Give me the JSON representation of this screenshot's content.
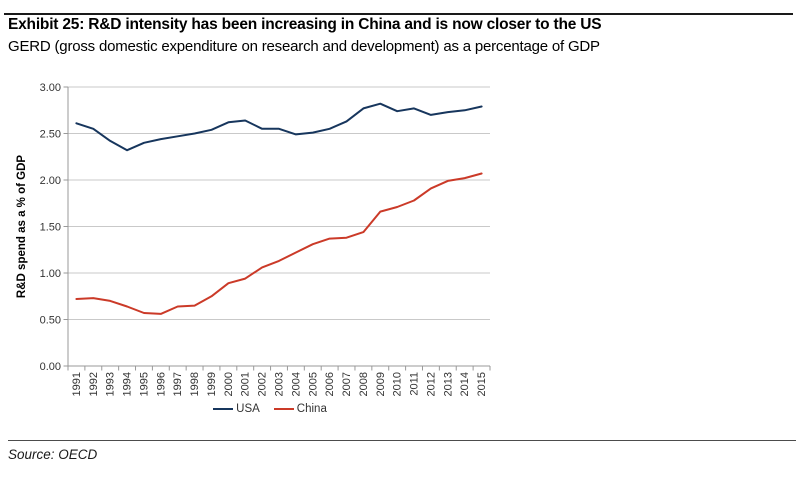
{
  "header": {
    "title": "Exhibit 25: R&D intensity has been increasing in China and is now closer to the US",
    "subtitle": "GERD (gross domestic expenditure on research and development) as a percentage of GDP"
  },
  "chart_data": {
    "type": "line",
    "x": [
      1991,
      1992,
      1993,
      1994,
      1995,
      1996,
      1997,
      1998,
      1999,
      2000,
      2001,
      2002,
      2003,
      2004,
      2005,
      2006,
      2007,
      2008,
      2009,
      2010,
      2011,
      2012,
      2013,
      2014,
      2015
    ],
    "series": [
      {
        "name": "USA",
        "color": "#17365d",
        "values": [
          2.61,
          2.55,
          2.42,
          2.32,
          2.4,
          2.44,
          2.47,
          2.5,
          2.54,
          2.62,
          2.64,
          2.55,
          2.55,
          2.49,
          2.51,
          2.55,
          2.63,
          2.77,
          2.82,
          2.74,
          2.77,
          2.7,
          2.73,
          2.75,
          2.79
        ]
      },
      {
        "name": "China",
        "color": "#cb3a28",
        "values": [
          0.72,
          0.73,
          0.7,
          0.64,
          0.57,
          0.56,
          0.64,
          0.65,
          0.75,
          0.89,
          0.94,
          1.06,
          1.13,
          1.22,
          1.31,
          1.37,
          1.38,
          1.44,
          1.66,
          1.71,
          1.78,
          1.91,
          1.99,
          2.02,
          2.07
        ]
      }
    ],
    "title": "",
    "xlabel": "",
    "ylabel": "R&D spend as a % of GDP",
    "ylim": [
      0,
      3.0
    ],
    "ytick_step": 0.5,
    "ytick_labels": [
      "0.00",
      "0.50",
      "1.00",
      "1.50",
      "2.00",
      "2.50",
      "3.00"
    ],
    "grid": true,
    "legend_position": "bottom"
  },
  "footer": {
    "source": "Source: OECD"
  },
  "colors": {
    "grid": "#c9c9c9",
    "axis": "#999999",
    "tick_text": "#333333",
    "rule_top": "#1a1a1a",
    "rule_bottom": "#4c4c4c"
  }
}
